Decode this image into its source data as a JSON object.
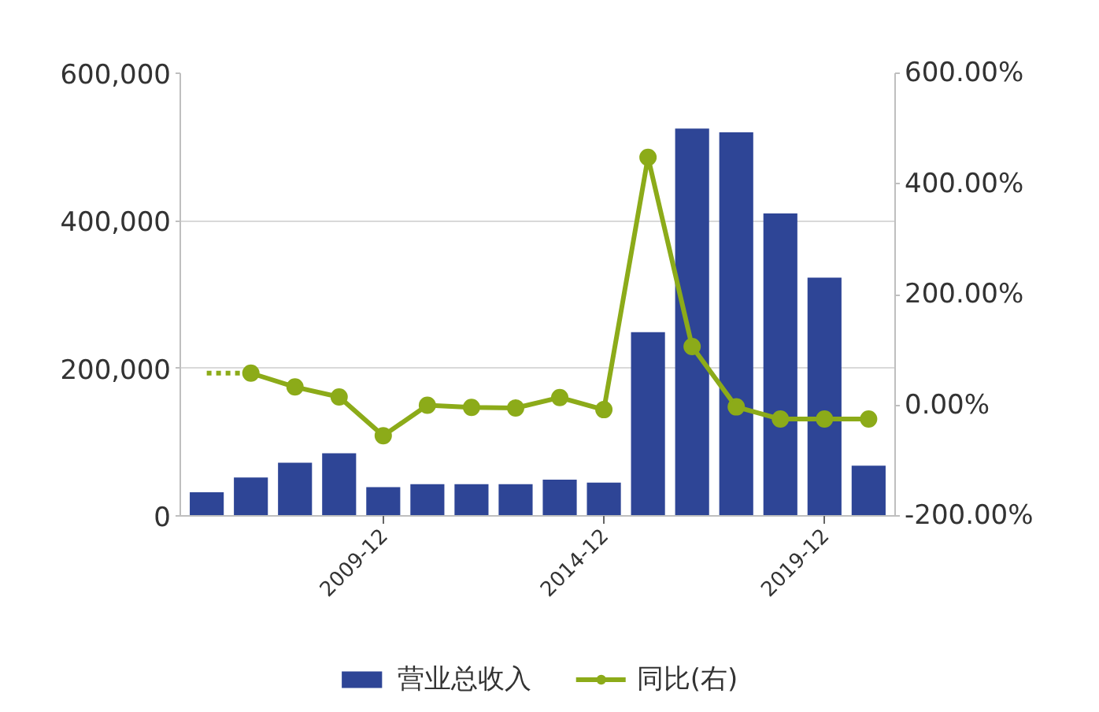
{
  "chart_data": {
    "type": "bar",
    "categories": [
      null,
      null,
      null,
      null,
      "2009-12",
      null,
      null,
      null,
      null,
      "2014-12",
      null,
      null,
      null,
      null,
      "2019-12",
      null
    ],
    "series": [
      {
        "name": "营业总收入",
        "color": "#2e4596",
        "values": [
          32000,
          52000,
          72000,
          85000,
          39000,
          43000,
          43000,
          43000,
          49000,
          45000,
          249000,
          525000,
          520000,
          410000,
          323000,
          68000
        ]
      },
      {
        "name": "同比(右)",
        "type": "line",
        "axis": "y2",
        "color": "#8cab19",
        "marker": "circle",
        "values": [
          null,
          58,
          33,
          15,
          -55,
          0,
          -4,
          -5,
          14,
          -8,
          448,
          106,
          -3,
          -25,
          -25,
          -25
        ]
      },
      {
        "type": "line",
        "axis": "y2",
        "color": "#8cab19",
        "line_style": "dotted",
        "values": [
          58,
          58,
          null,
          null,
          null,
          null,
          null,
          null,
          null,
          null,
          null,
          null,
          null,
          null,
          null,
          null
        ]
      }
    ],
    "ylim": [
      0,
      600000
    ],
    "yticks": [
      0,
      {
        "value": 200000,
        "label": "200,000"
      },
      {
        "value": 400000,
        "label": "400,000"
      },
      {
        "value": 600000,
        "label": "600,000"
      }
    ],
    "y2lim": [
      -200,
      600
    ],
    "y2ticks": [
      {
        "value": -200,
        "label": "-200.00%"
      },
      {
        "value": 0,
        "label": "0.00%"
      },
      {
        "value": 200,
        "label": "200.00%"
      },
      {
        "value": 400,
        "label": "400.00%"
      },
      {
        "value": 600,
        "label": "600.00%"
      }
    ],
    "grid": "y",
    "legend": "bottom",
    "line_style": "solid"
  }
}
